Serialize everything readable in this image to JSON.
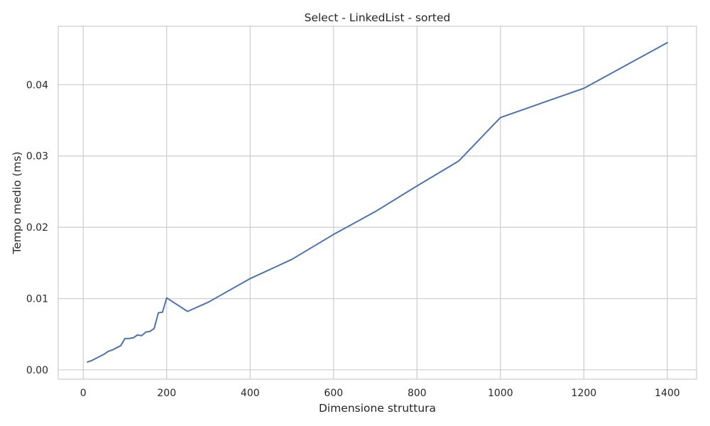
{
  "chart_data": {
    "type": "line",
    "title": "Select - LinkedList - sorted",
    "xlabel": "Dimensione struttura",
    "ylabel": "Tempo medio (ms)",
    "xlim": [
      -60,
      1470
    ],
    "ylim": [
      -0.0013,
      0.0482
    ],
    "xticks": [
      0,
      200,
      400,
      600,
      800,
      1000,
      1200,
      1400
    ],
    "xtick_labels": [
      "0",
      "200",
      "400",
      "600",
      "800",
      "1000",
      "1200",
      "1400"
    ],
    "yticks": [
      0.0,
      0.01,
      0.02,
      0.03,
      0.04
    ],
    "ytick_labels": [
      "0.00",
      "0.01",
      "0.02",
      "0.03",
      "0.04"
    ],
    "grid": true,
    "series": [
      {
        "color": "#4c72b0",
        "x": [
          10,
          20,
          30,
          40,
          50,
          60,
          70,
          80,
          90,
          100,
          110,
          120,
          130,
          140,
          150,
          160,
          170,
          180,
          190,
          200,
          250,
          300,
          400,
          500,
          600,
          700,
          800,
          900,
          1000,
          1200,
          1400
        ],
        "y": [
          0.0011,
          0.0013,
          0.0016,
          0.0019,
          0.0022,
          0.0026,
          0.0028,
          0.0031,
          0.0034,
          0.0044,
          0.0044,
          0.0045,
          0.0049,
          0.0048,
          0.0053,
          0.0054,
          0.0058,
          0.008,
          0.0081,
          0.0101,
          0.0082,
          0.0095,
          0.0128,
          0.0155,
          0.019,
          0.0222,
          0.0258,
          0.0293,
          0.0354,
          0.0395,
          0.0459
        ]
      }
    ]
  }
}
